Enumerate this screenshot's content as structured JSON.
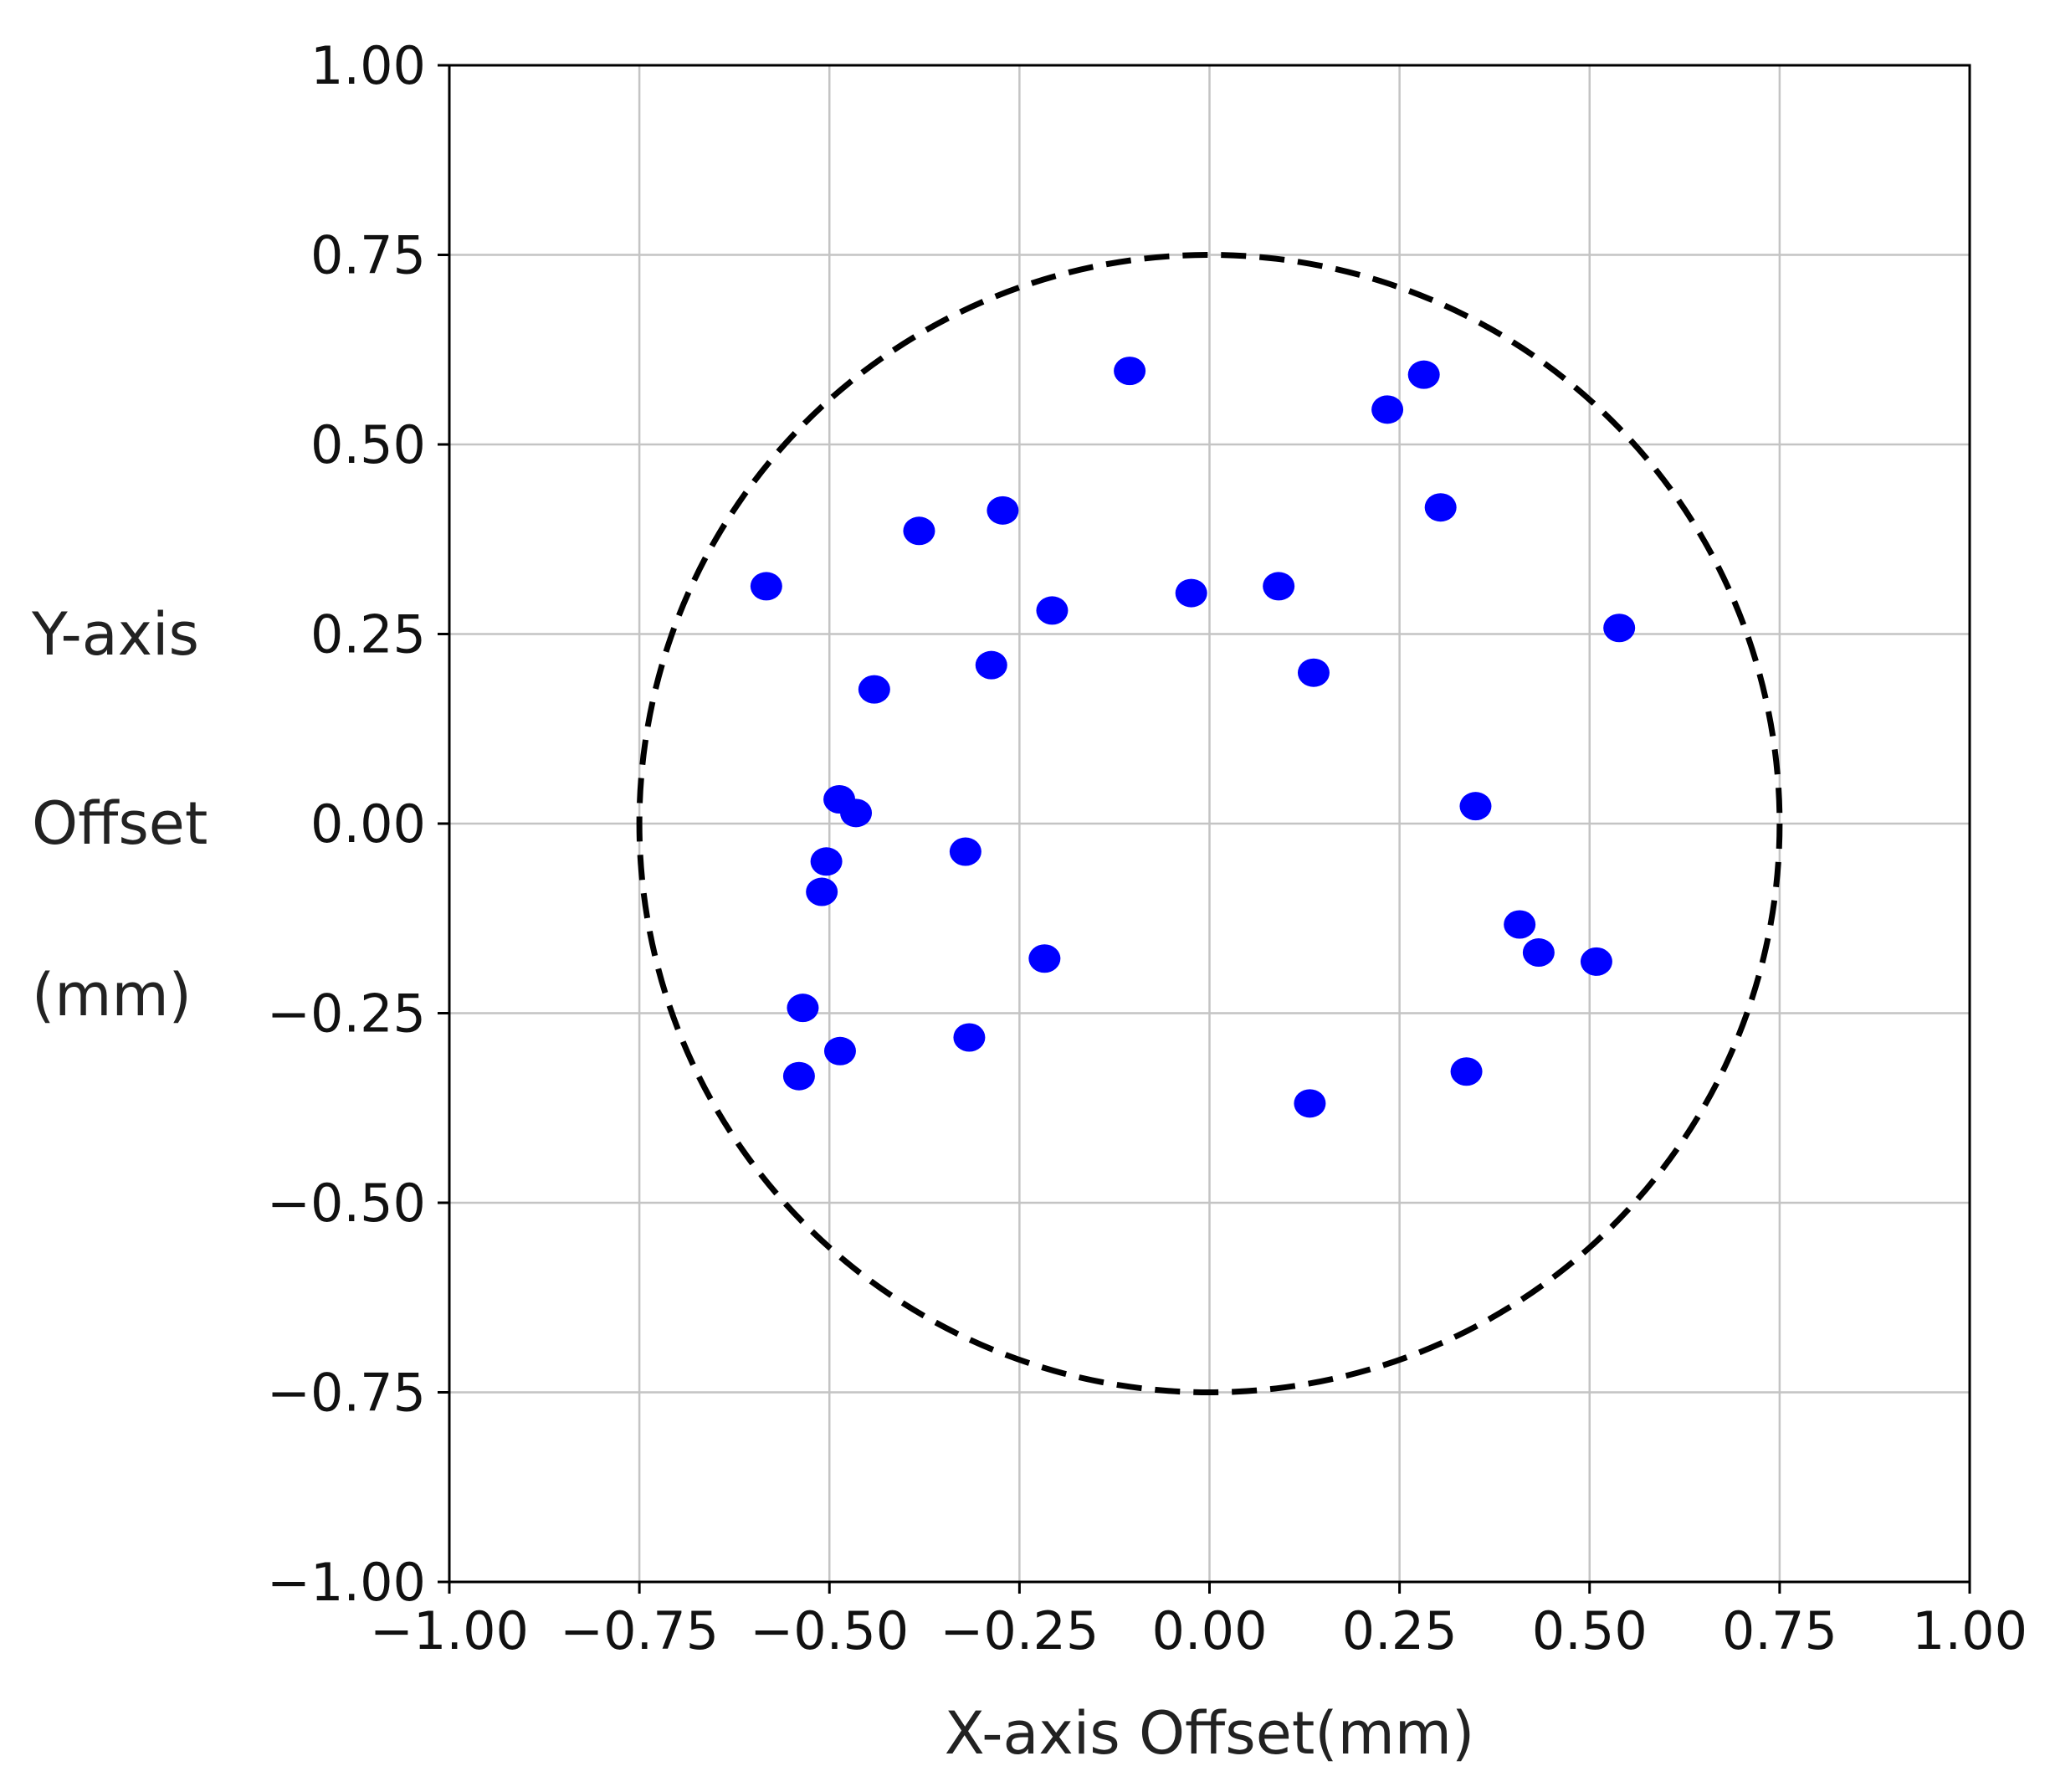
{
  "chart_data": {
    "type": "scatter",
    "xlabel": "X-axis Offset(mm)",
    "ylabel_lines": [
      "Y-axis",
      "Offset",
      "(mm)"
    ],
    "xlim": [
      -1.0,
      1.0
    ],
    "ylim": [
      -1.0,
      1.0
    ],
    "xticks": [
      -1.0,
      -0.75,
      -0.5,
      -0.25,
      0.0,
      0.25,
      0.5,
      0.75,
      1.0
    ],
    "yticks": [
      -1.0,
      -0.75,
      -0.5,
      -0.25,
      0.0,
      0.25,
      0.5,
      0.75,
      1.0
    ],
    "xtick_labels": [
      "−1.00",
      "−0.75",
      "−0.50",
      "−0.25",
      "0.00",
      "0.25",
      "0.50",
      "0.75",
      "1.00"
    ],
    "ytick_labels": [
      "−1.00",
      "−0.75",
      "−0.50",
      "−0.25",
      "0.00",
      "0.25",
      "0.50",
      "0.75",
      "1.00"
    ],
    "grid": true,
    "marker_color": "#0000ff",
    "circle": {
      "center": [
        0.0,
        0.0
      ],
      "radius": 0.75,
      "style": "dashed",
      "color": "#000000"
    },
    "points": [
      {
        "x": -0.105,
        "y": 0.597
      },
      {
        "x": 0.282,
        "y": 0.592
      },
      {
        "x": 0.234,
        "y": 0.546
      },
      {
        "x": 0.304,
        "y": 0.417
      },
      {
        "x": -0.272,
        "y": 0.413
      },
      {
        "x": -0.382,
        "y": 0.386
      },
      {
        "x": -0.583,
        "y": 0.313
      },
      {
        "x": -0.024,
        "y": 0.304
      },
      {
        "x": 0.091,
        "y": 0.313
      },
      {
        "x": -0.207,
        "y": 0.281
      },
      {
        "x": 0.539,
        "y": 0.258
      },
      {
        "x": -0.287,
        "y": 0.209
      },
      {
        "x": 0.137,
        "y": 0.199
      },
      {
        "x": -0.441,
        "y": 0.177
      },
      {
        "x": -0.487,
        "y": 0.032
      },
      {
        "x": -0.465,
        "y": 0.014
      },
      {
        "x": 0.35,
        "y": 0.023
      },
      {
        "x": -0.504,
        "y": -0.05
      },
      {
        "x": -0.321,
        "y": -0.037
      },
      {
        "x": -0.51,
        "y": -0.09
      },
      {
        "x": 0.408,
        "y": -0.133
      },
      {
        "x": 0.433,
        "y": -0.17
      },
      {
        "x": 0.509,
        "y": -0.182
      },
      {
        "x": -0.217,
        "y": -0.178
      },
      {
        "x": -0.535,
        "y": -0.243
      },
      {
        "x": -0.486,
        "y": -0.3
      },
      {
        "x": -0.316,
        "y": -0.282
      },
      {
        "x": -0.54,
        "y": -0.333
      },
      {
        "x": 0.338,
        "y": -0.327
      },
      {
        "x": 0.132,
        "y": -0.369
      }
    ]
  }
}
